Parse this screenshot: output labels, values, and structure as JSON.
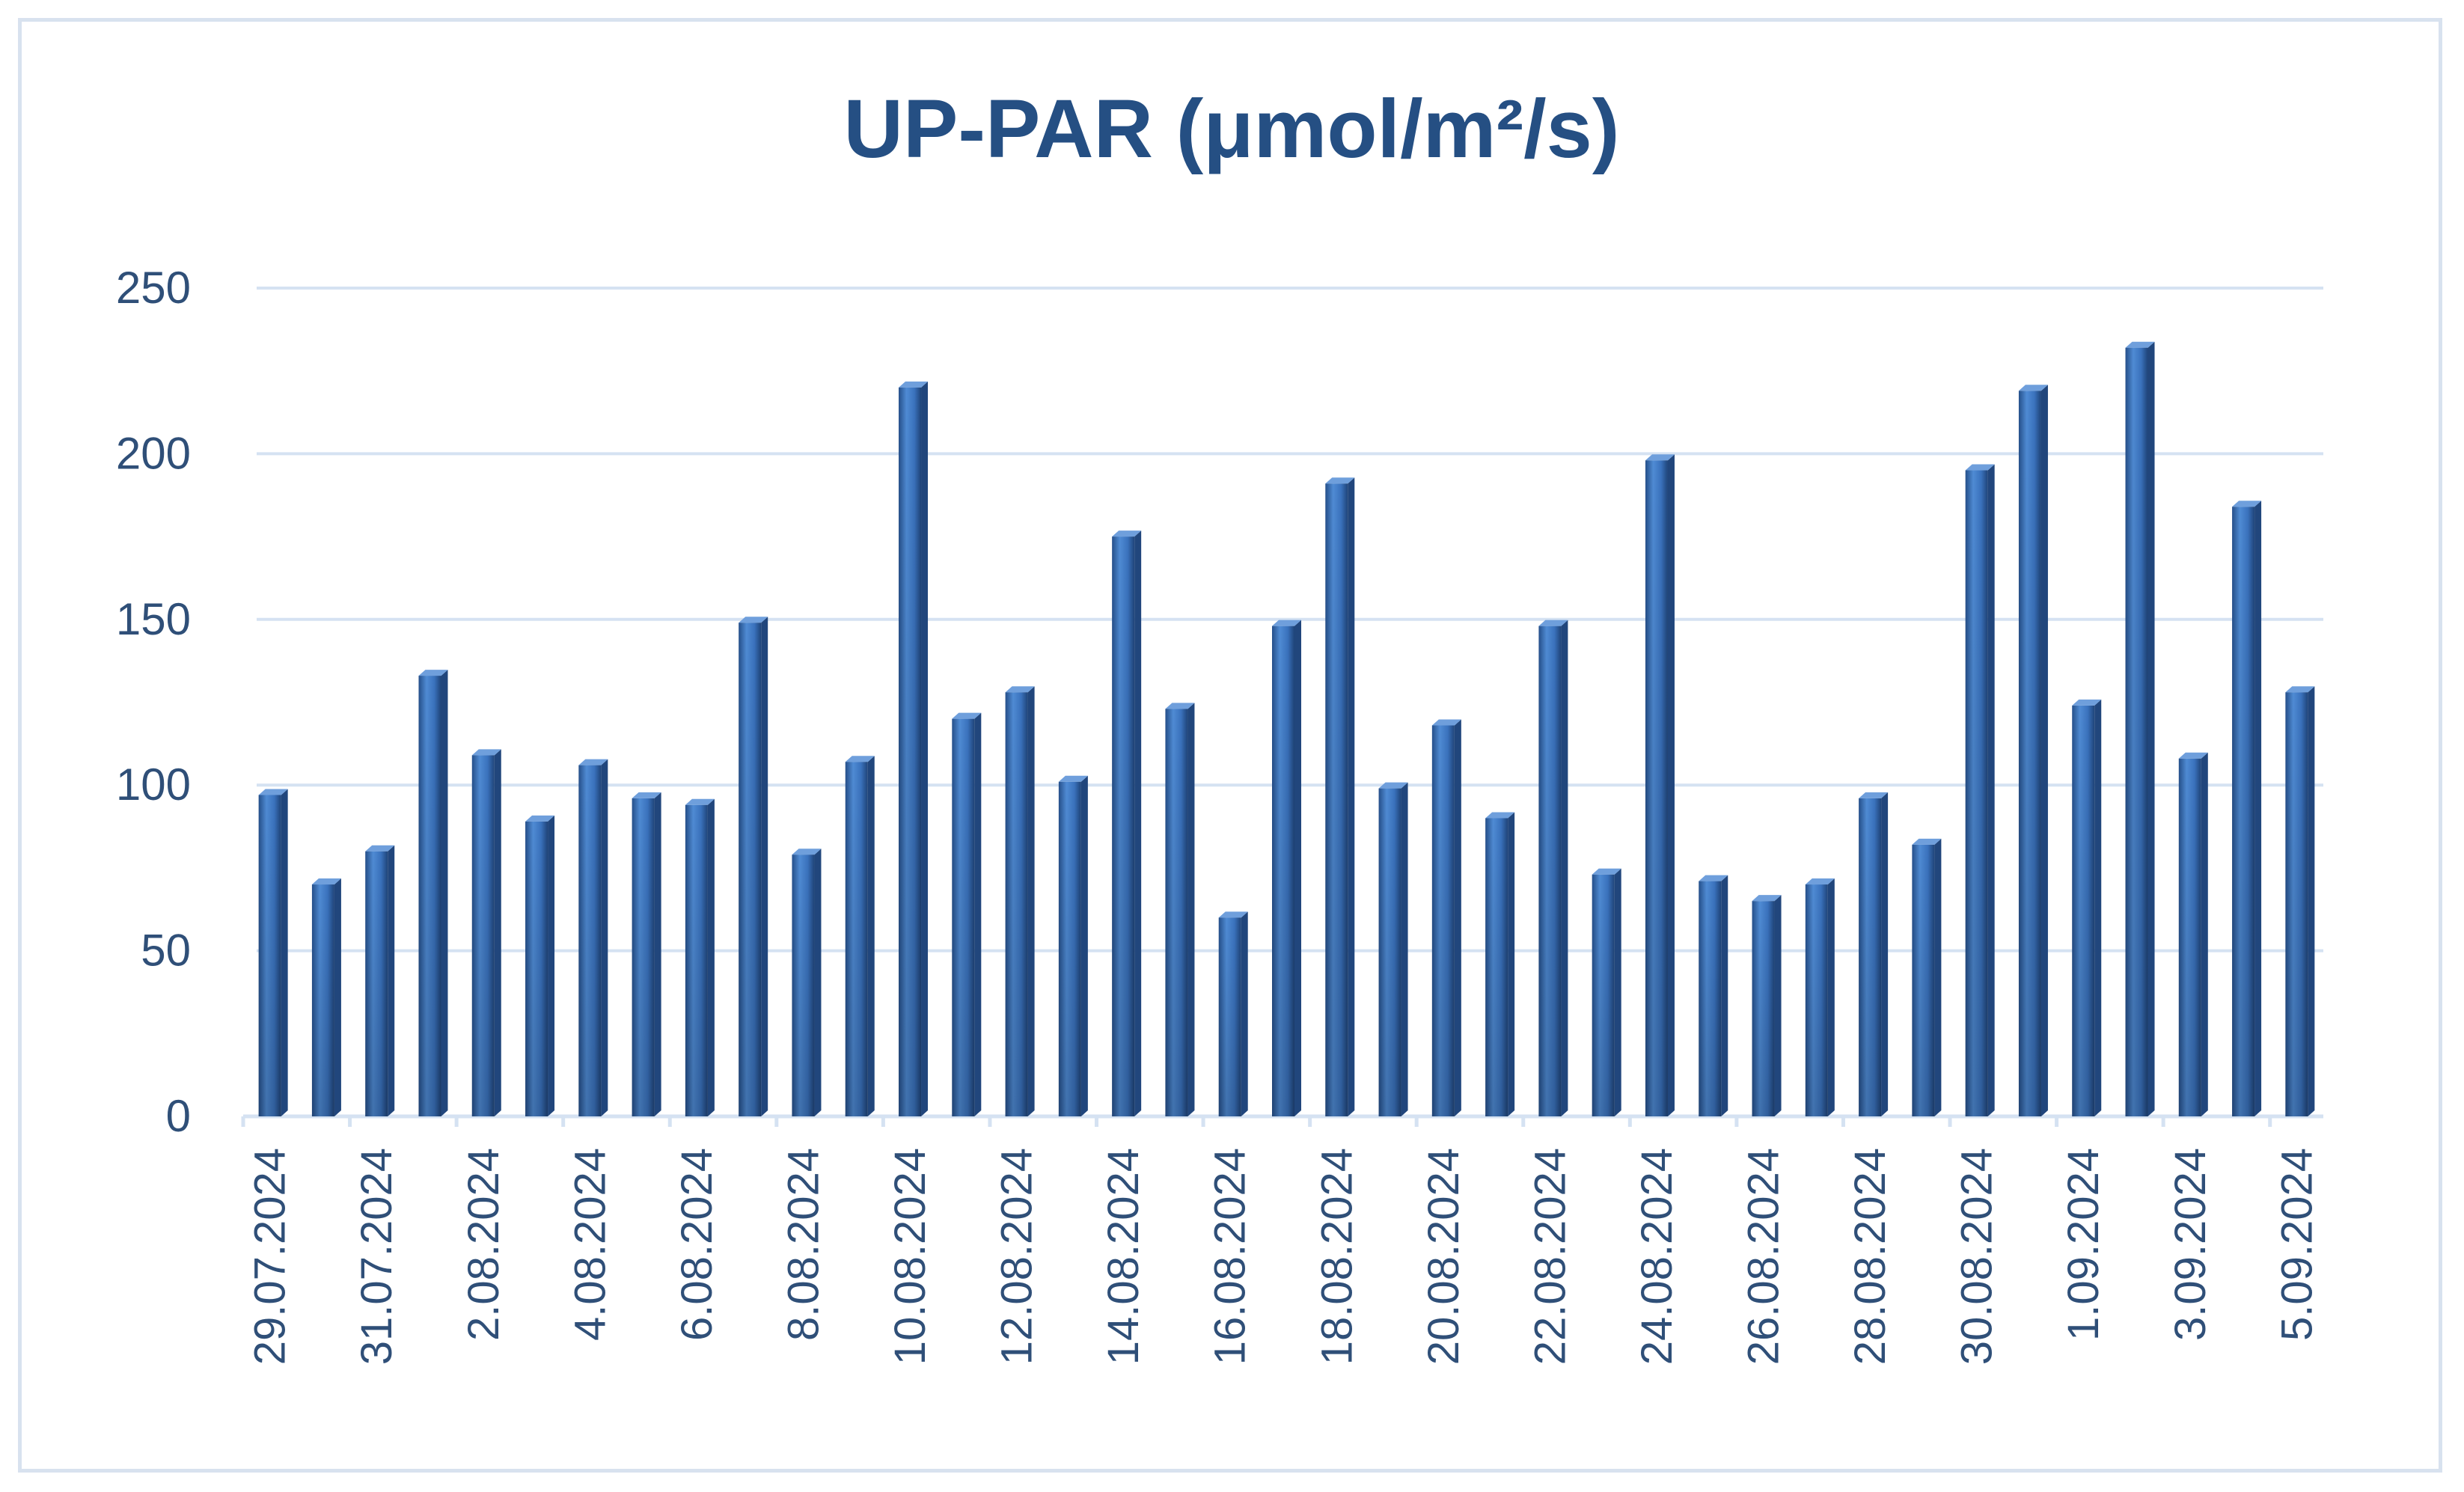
{
  "chart_data": {
    "type": "bar",
    "title": "UP-PAR (μmol/m²/s)",
    "xlabel": "",
    "ylabel": "",
    "ylim": [
      0,
      250
    ],
    "yticks": [
      0,
      50,
      100,
      150,
      200,
      250
    ],
    "grid": true,
    "legend": "none",
    "categories": [
      "29.07.2024",
      "30.07.2024",
      "31.07.2024",
      "1.08.2024",
      "2.08.2024",
      "3.08.2024",
      "4.08.2024",
      "5.08.2024",
      "6.08.2024",
      "7.08.2024",
      "8.08.2024",
      "9.08.2024",
      "10.08.2024",
      "11.08.2024",
      "12.08.2024",
      "13.08.2024",
      "14.08.2024",
      "15.08.2024",
      "16.08.2024",
      "17.08.2024",
      "18.08.2024",
      "19.08.2024",
      "20.08.2024",
      "21.08.2024",
      "22.08.2024",
      "23.08.2024",
      "24.08.2024",
      "25.08.2024",
      "26.08.2024",
      "27.08.2024",
      "28.08.2024",
      "29.08.2024",
      "30.08.2024",
      "31.08.2024",
      "1.09.2024",
      "2.09.2024",
      "3.09.2024",
      "4.09.2024",
      "5.09.2024"
    ],
    "tick_labels": [
      "29.07.2024",
      "31.07.2024",
      "2.08.2024",
      "4.08.2024",
      "6.08.2024",
      "8.08.2024",
      "10.08.2024",
      "12.08.2024",
      "14.08.2024",
      "16.08.2024",
      "18.08.2024",
      "20.08.2024",
      "22.08.2024",
      "24.08.2024",
      "26.08.2024",
      "28.08.2024",
      "30.08.2024",
      "1.09.2024",
      "3.09.2024",
      "5.09.2024"
    ],
    "values": [
      97,
      70,
      80,
      133,
      109,
      89,
      106,
      96,
      94,
      149,
      79,
      107,
      220,
      120,
      128,
      101,
      175,
      123,
      60,
      148,
      191,
      99,
      118,
      90,
      148,
      73,
      198,
      71,
      65,
      70,
      96,
      82,
      195,
      219,
      124,
      232,
      108,
      184,
      128
    ],
    "colors": {
      "bar": "#3f78c2",
      "bar_dark": "#21467c",
      "bar_light": "#6f9fdc",
      "grid": "#d5e2f2",
      "text": "#2f4f78",
      "title": "#254f83"
    }
  }
}
